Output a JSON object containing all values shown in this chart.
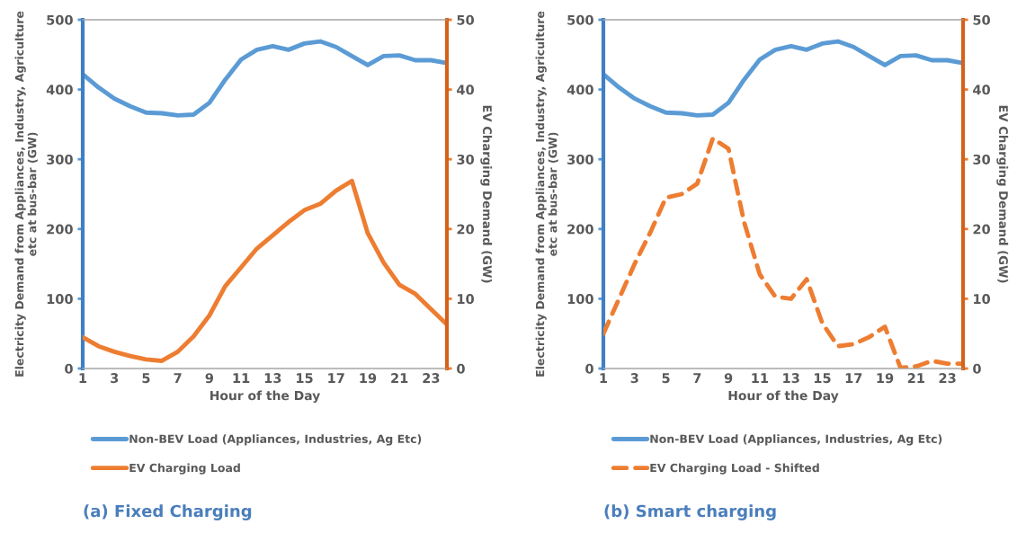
{
  "chart_data": [
    {
      "type": "line",
      "title": "(a) Fixed Charging",
      "xlabel": "Hour of the Day",
      "ylabel": "Electricity Demand from Appliances, Industry, Agriculture etc at bus-bar (GW)",
      "y2label": "EV Charging Demand (GW)",
      "x": [
        1,
        2,
        3,
        4,
        5,
        6,
        7,
        8,
        9,
        10,
        11,
        12,
        13,
        14,
        15,
        16,
        17,
        18,
        19,
        20,
        21,
        22,
        23,
        24
      ],
      "xlim": [
        1,
        24
      ],
      "xticks": [
        1,
        3,
        5,
        7,
        9,
        11,
        13,
        15,
        17,
        19,
        21,
        23
      ],
      "ylim": [
        0,
        500
      ],
      "yticks": [
        0,
        100,
        200,
        300,
        400,
        500
      ],
      "y2lim": [
        0,
        50
      ],
      "y2ticks": [
        0,
        10,
        20,
        30,
        40,
        50
      ],
      "legend": "bottom",
      "grid": false,
      "series": [
        {
          "name": "Non-BEV Load (Appliances, Industries, Ag Etc)",
          "color": "#5b9bd5",
          "line_style": "solid",
          "values": [
            422,
            403,
            387,
            376,
            367,
            366,
            363,
            364,
            381,
            414,
            443,
            457,
            462,
            457,
            466,
            469,
            461,
            448,
            435,
            448,
            449,
            442,
            442,
            438
          ]
        },
        {
          "name": "EV Charging Load",
          "color": "#ed7d31",
          "axis": "y2",
          "line_style": "solid",
          "values": [
            4.5,
            3.2,
            2.4,
            1.8,
            1.3,
            1.1,
            2.4,
            4.6,
            7.6,
            11.8,
            14.5,
            17.2,
            19.1,
            21.0,
            22.7,
            23.6,
            25.5,
            26.9,
            19.4,
            15.2,
            12.0,
            10.7,
            8.5,
            6.3
          ]
        }
      ]
    },
    {
      "type": "line",
      "title": "(b) Smart charging",
      "xlabel": "Hour of the Day",
      "ylabel": "Electricity Demand from Appliances, Industry, Agriculture etc at bus-bar (GW)",
      "y2label": "EV Charging Demand (GW)",
      "x": [
        1,
        2,
        3,
        4,
        5,
        6,
        7,
        8,
        9,
        10,
        11,
        12,
        13,
        14,
        15,
        16,
        17,
        18,
        19,
        20,
        21,
        22,
        23,
        24
      ],
      "xlim": [
        1,
        24
      ],
      "xticks": [
        1,
        3,
        5,
        7,
        9,
        11,
        13,
        15,
        17,
        19,
        21,
        23
      ],
      "ylim": [
        0,
        500
      ],
      "yticks": [
        0,
        100,
        200,
        300,
        400,
        500
      ],
      "y2lim": [
        0,
        50
      ],
      "y2ticks": [
        0,
        10,
        20,
        30,
        40,
        50
      ],
      "legend": "bottom",
      "grid": false,
      "series": [
        {
          "name": "Non-BEV Load (Appliances, Industries, Ag Etc)",
          "color": "#5b9bd5",
          "line_style": "solid",
          "values": [
            422,
            403,
            387,
            376,
            367,
            366,
            363,
            364,
            381,
            414,
            443,
            457,
            462,
            457,
            466,
            469,
            461,
            448,
            435,
            448,
            449,
            442,
            442,
            438
          ]
        },
        {
          "name": "EV Charging Load - Shifted",
          "color": "#ed7d31",
          "axis": "y2",
          "line_style": "dashed",
          "values": [
            5,
            10,
            15,
            19.5,
            24.5,
            25,
            26.5,
            33,
            31.5,
            21,
            13.5,
            10.3,
            10,
            12.8,
            6.5,
            3.2,
            3.5,
            4.5,
            6,
            0.1,
            0.3,
            1.1,
            0.7,
            0.7
          ]
        }
      ]
    }
  ]
}
